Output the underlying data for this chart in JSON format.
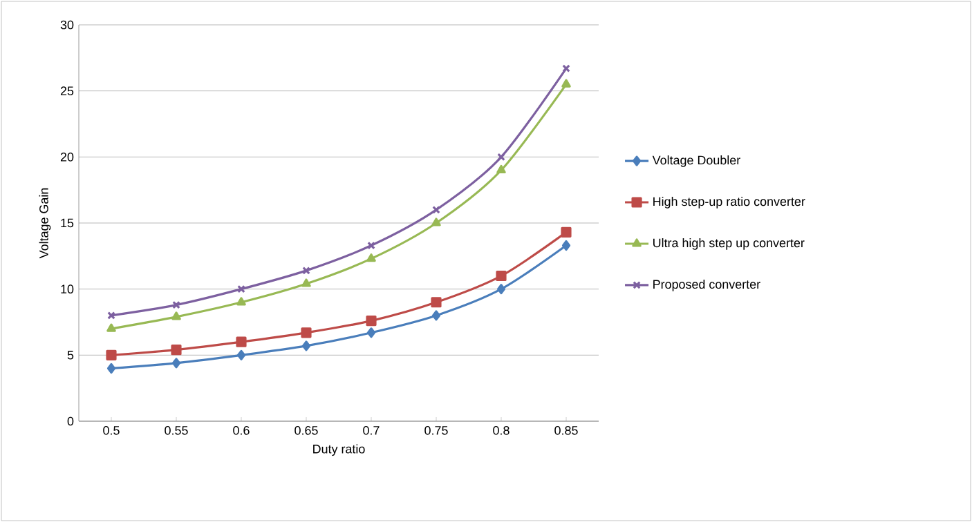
{
  "chart_data": {
    "type": "line",
    "xlabel": "Duty ratio",
    "ylabel": "Voltage Gain",
    "categories": [
      "0.5",
      "0.55",
      "0.6",
      "0.65",
      "0.7",
      "0.75",
      "0.8",
      "0.85"
    ],
    "series": [
      {
        "name": "Voltage Doubler",
        "color": "#4a7ebb",
        "marker": "diamond",
        "values": [
          4,
          4.4,
          5,
          5.7,
          6.7,
          8,
          10,
          13.3
        ]
      },
      {
        "name": "High step-up ratio converter",
        "color": "#be4b48",
        "marker": "square",
        "values": [
          5,
          5.4,
          6,
          6.7,
          7.6,
          9,
          11,
          14.3
        ]
      },
      {
        "name": "Ultra high step up converter",
        "color": "#98b954",
        "marker": "triangle",
        "values": [
          7,
          7.9,
          9,
          10.4,
          12.3,
          15,
          19,
          25.5
        ]
      },
      {
        "name": "Proposed converter",
        "color": "#7d60a0",
        "marker": "cross",
        "values": [
          8,
          8.8,
          10,
          11.4,
          13.3,
          16,
          20,
          26.7
        ]
      }
    ],
    "ylim": [
      0,
      30
    ],
    "yticks": [
      0,
      5,
      10,
      15,
      20,
      25,
      30
    ],
    "grid": "y",
    "legend": "right"
  }
}
